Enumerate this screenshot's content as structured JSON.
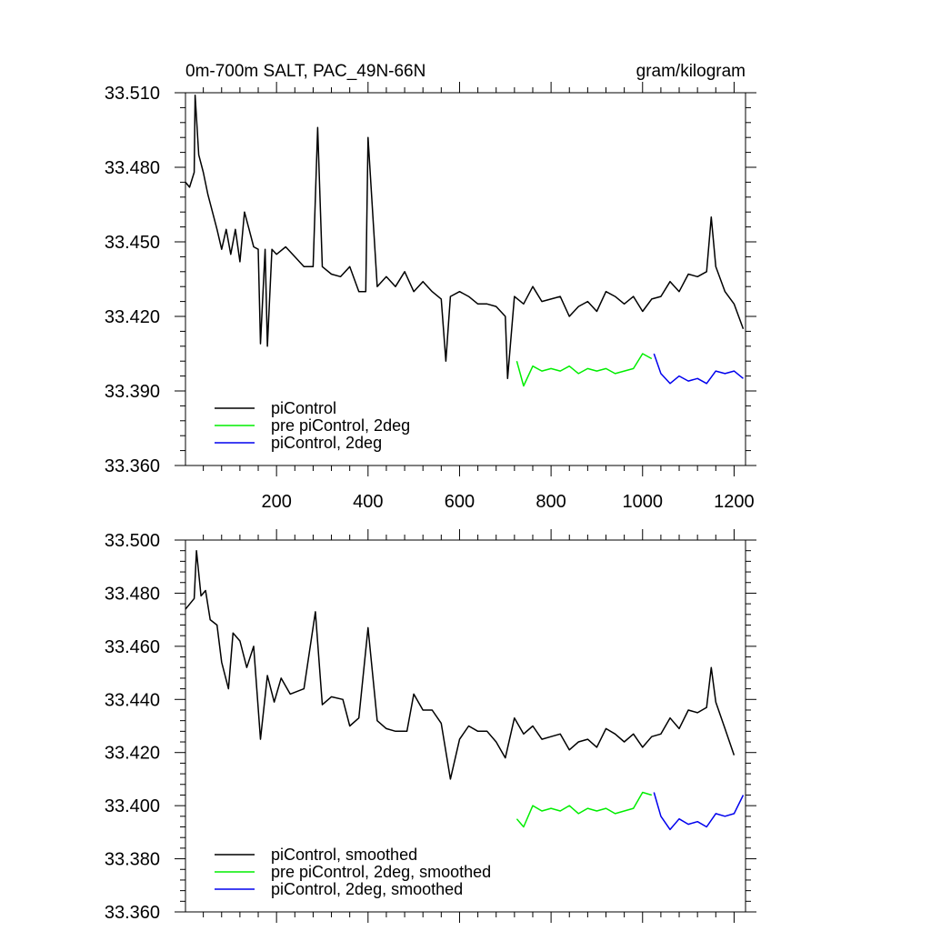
{
  "colors": {
    "piControl": "#000000",
    "pre_piControl_2deg": "#00ee00",
    "piControl_2deg": "#0000ee"
  },
  "chart_data": [
    {
      "type": "line",
      "title_left": "0m-700m SALT, PAC_49N-66N",
      "title_right": "gram/kilogram",
      "xlim": [
        1,
        1225
      ],
      "ylim": [
        33.36,
        33.51
      ],
      "x_ticks": [
        200,
        400,
        600,
        800,
        1000,
        1200
      ],
      "x_tick_labels": [
        "200",
        "400",
        "600",
        "800",
        "1000",
        "1200"
      ],
      "y_ticks": [
        33.36,
        33.39,
        33.42,
        33.45,
        33.48,
        33.51
      ],
      "y_tick_labels": [
        "33.360",
        "33.390",
        "33.420",
        "33.450",
        "33.480",
        "33.510"
      ],
      "legend": [
        "piControl",
        "pre piControl, 2deg",
        "piControl, 2deg"
      ],
      "series": [
        {
          "name": "piControl",
          "color": "#000000",
          "points": [
            [
              1,
              33.474
            ],
            [
              10,
              33.472
            ],
            [
              20,
              33.478
            ],
            [
              22,
              33.509
            ],
            [
              30,
              33.485
            ],
            [
              40,
              33.478
            ],
            [
              50,
              33.469
            ],
            [
              60,
              33.462
            ],
            [
              70,
              33.455
            ],
            [
              80,
              33.447
            ],
            [
              90,
              33.455
            ],
            [
              100,
              33.445
            ],
            [
              110,
              33.455
            ],
            [
              120,
              33.442
            ],
            [
              130,
              33.462
            ],
            [
              140,
              33.455
            ],
            [
              150,
              33.448
            ],
            [
              160,
              33.447
            ],
            [
              165,
              33.409
            ],
            [
              175,
              33.447
            ],
            [
              180,
              33.408
            ],
            [
              190,
              33.447
            ],
            [
              200,
              33.445
            ],
            [
              220,
              33.448
            ],
            [
              240,
              33.444
            ],
            [
              260,
              33.44
            ],
            [
              280,
              33.44
            ],
            [
              290,
              33.496
            ],
            [
              300,
              33.44
            ],
            [
              320,
              33.437
            ],
            [
              340,
              33.436
            ],
            [
              360,
              33.44
            ],
            [
              380,
              33.43
            ],
            [
              395,
              33.43
            ],
            [
              400,
              33.492
            ],
            [
              420,
              33.432
            ],
            [
              440,
              33.436
            ],
            [
              460,
              33.432
            ],
            [
              480,
              33.438
            ],
            [
              500,
              33.43
            ],
            [
              520,
              33.434
            ],
            [
              540,
              33.43
            ],
            [
              560,
              33.427
            ],
            [
              570,
              33.402
            ],
            [
              580,
              33.428
            ],
            [
              600,
              33.43
            ],
            [
              620,
              33.428
            ],
            [
              640,
              33.425
            ],
            [
              660,
              33.425
            ],
            [
              680,
              33.424
            ],
            [
              700,
              33.42
            ],
            [
              705,
              33.395
            ],
            [
              720,
              33.428
            ],
            [
              740,
              33.425
            ],
            [
              760,
              33.432
            ],
            [
              780,
              33.426
            ],
            [
              800,
              33.427
            ],
            [
              820,
              33.428
            ],
            [
              840,
              33.42
            ],
            [
              860,
              33.424
            ],
            [
              880,
              33.426
            ],
            [
              900,
              33.422
            ],
            [
              920,
              33.43
            ],
            [
              940,
              33.428
            ],
            [
              960,
              33.425
            ],
            [
              980,
              33.428
            ],
            [
              1000,
              33.422
            ],
            [
              1020,
              33.427
            ],
            [
              1040,
              33.428
            ],
            [
              1060,
              33.434
            ],
            [
              1080,
              33.43
            ],
            [
              1100,
              33.437
            ],
            [
              1120,
              33.436
            ],
            [
              1140,
              33.438
            ],
            [
              1150,
              33.46
            ],
            [
              1160,
              33.44
            ],
            [
              1180,
              33.43
            ],
            [
              1200,
              33.425
            ],
            [
              1220,
              33.415
            ]
          ]
        },
        {
          "name": "pre piControl, 2deg",
          "color": "#00ee00",
          "points": [
            [
              725,
              33.402
            ],
            [
              740,
              33.392
            ],
            [
              760,
              33.4
            ],
            [
              780,
              33.398
            ],
            [
              800,
              33.399
            ],
            [
              820,
              33.398
            ],
            [
              840,
              33.4
            ],
            [
              860,
              33.397
            ],
            [
              880,
              33.399
            ],
            [
              900,
              33.398
            ],
            [
              920,
              33.399
            ],
            [
              940,
              33.397
            ],
            [
              960,
              33.398
            ],
            [
              980,
              33.399
            ],
            [
              1000,
              33.405
            ],
            [
              1020,
              33.403
            ]
          ]
        },
        {
          "name": "piControl, 2deg",
          "color": "#0000ee",
          "points": [
            [
              1025,
              33.405
            ],
            [
              1040,
              33.397
            ],
            [
              1060,
              33.393
            ],
            [
              1080,
              33.396
            ],
            [
              1100,
              33.394
            ],
            [
              1120,
              33.395
            ],
            [
              1140,
              33.393
            ],
            [
              1160,
              33.398
            ],
            [
              1180,
              33.397
            ],
            [
              1200,
              33.398
            ],
            [
              1220,
              33.395
            ]
          ]
        }
      ]
    },
    {
      "type": "line",
      "xlim": [
        1,
        1225
      ],
      "ylim": [
        33.36,
        33.5
      ],
      "x_ticks": [
        200,
        400,
        600,
        800,
        1000,
        1200
      ],
      "y_ticks": [
        33.36,
        33.38,
        33.4,
        33.42,
        33.44,
        33.46,
        33.48,
        33.5
      ],
      "y_tick_labels": [
        "33.360",
        "33.380",
        "33.400",
        "33.420",
        "33.440",
        "33.460",
        "33.480",
        "33.500"
      ],
      "legend": [
        "piControl, smoothed",
        "pre piControl, 2deg, smoothed",
        "piControl, 2deg, smoothed"
      ],
      "series": [
        {
          "name": "piControl, smoothed",
          "color": "#000000",
          "points": [
            [
              1,
              33.474
            ],
            [
              20,
              33.478
            ],
            [
              25,
              33.496
            ],
            [
              35,
              33.479
            ],
            [
              45,
              33.481
            ],
            [
              55,
              33.47
            ],
            [
              70,
              33.468
            ],
            [
              80,
              33.454
            ],
            [
              95,
              33.444
            ],
            [
              105,
              33.465
            ],
            [
              120,
              33.462
            ],
            [
              135,
              33.452
            ],
            [
              150,
              33.46
            ],
            [
              165,
              33.425
            ],
            [
              180,
              33.449
            ],
            [
              195,
              33.439
            ],
            [
              210,
              33.448
            ],
            [
              230,
              33.442
            ],
            [
              260,
              33.444
            ],
            [
              285,
              33.473
            ],
            [
              300,
              33.438
            ],
            [
              320,
              33.441
            ],
            [
              345,
              33.44
            ],
            [
              360,
              33.43
            ],
            [
              380,
              33.433
            ],
            [
              400,
              33.467
            ],
            [
              420,
              33.432
            ],
            [
              440,
              33.429
            ],
            [
              460,
              33.428
            ],
            [
              485,
              33.428
            ],
            [
              500,
              33.442
            ],
            [
              520,
              33.436
            ],
            [
              540,
              33.436
            ],
            [
              560,
              33.431
            ],
            [
              580,
              33.41
            ],
            [
              600,
              33.425
            ],
            [
              620,
              33.43
            ],
            [
              640,
              33.428
            ],
            [
              660,
              33.428
            ],
            [
              680,
              33.424
            ],
            [
              700,
              33.418
            ],
            [
              720,
              33.433
            ],
            [
              740,
              33.427
            ],
            [
              760,
              33.43
            ],
            [
              780,
              33.425
            ],
            [
              800,
              33.426
            ],
            [
              820,
              33.427
            ],
            [
              840,
              33.421
            ],
            [
              860,
              33.424
            ],
            [
              880,
              33.425
            ],
            [
              900,
              33.422
            ],
            [
              920,
              33.429
            ],
            [
              940,
              33.427
            ],
            [
              960,
              33.424
            ],
            [
              980,
              33.427
            ],
            [
              1000,
              33.422
            ],
            [
              1020,
              33.426
            ],
            [
              1040,
              33.427
            ],
            [
              1060,
              33.433
            ],
            [
              1080,
              33.429
            ],
            [
              1100,
              33.436
            ],
            [
              1120,
              33.435
            ],
            [
              1140,
              33.437
            ],
            [
              1150,
              33.452
            ],
            [
              1160,
              33.439
            ],
            [
              1180,
              33.429
            ],
            [
              1200,
              33.419
            ]
          ]
        },
        {
          "name": "pre piControl, 2deg, smoothed",
          "color": "#00ee00",
          "points": [
            [
              725,
              33.395
            ],
            [
              740,
              33.392
            ],
            [
              760,
              33.4
            ],
            [
              780,
              33.398
            ],
            [
              800,
              33.399
            ],
            [
              820,
              33.398
            ],
            [
              840,
              33.4
            ],
            [
              860,
              33.397
            ],
            [
              880,
              33.399
            ],
            [
              900,
              33.398
            ],
            [
              920,
              33.399
            ],
            [
              940,
              33.397
            ],
            [
              960,
              33.398
            ],
            [
              980,
              33.399
            ],
            [
              1000,
              33.405
            ],
            [
              1020,
              33.404
            ]
          ]
        },
        {
          "name": "piControl, 2deg, smoothed",
          "color": "#0000ee",
          "points": [
            [
              1025,
              33.405
            ],
            [
              1040,
              33.396
            ],
            [
              1060,
              33.391
            ],
            [
              1080,
              33.395
            ],
            [
              1100,
              33.393
            ],
            [
              1120,
              33.394
            ],
            [
              1140,
              33.392
            ],
            [
              1160,
              33.397
            ],
            [
              1180,
              33.396
            ],
            [
              1200,
              33.397
            ],
            [
              1220,
              33.404
            ]
          ]
        }
      ]
    }
  ]
}
